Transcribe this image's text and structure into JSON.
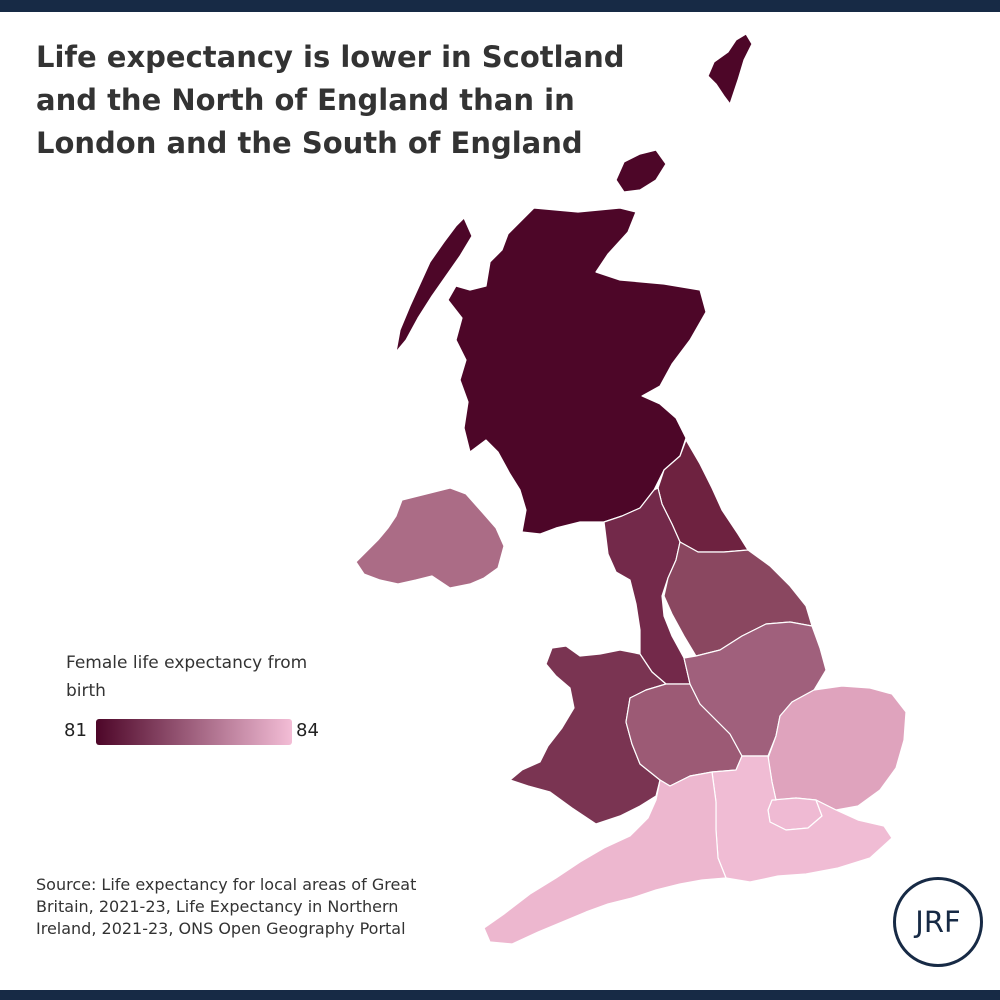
{
  "title": "Life expectancy is lower in Scotland and the North of England than in London and the South of England",
  "legend": {
    "title": "Female life expectancy from birth",
    "min_label": "81",
    "max_label": "84",
    "min_value": 81,
    "max_value": 84,
    "color_low": "#4d0628",
    "color_high": "#f3bdd6"
  },
  "source": "Source: Life expectancy for local areas of Great Britain, 2021-23, Life Expectancy in Northern Ireland, 2021-23, ONS Open Geography Portal",
  "logo_text": "JRF",
  "frame_color": "#172a45",
  "regions": [
    {
      "name": "Scotland",
      "color": "#4d0628"
    },
    {
      "name": "North East",
      "color": "#6e2240"
    },
    {
      "name": "North West",
      "color": "#73294a"
    },
    {
      "name": "Yorkshire and The Humber",
      "color": "#8a4760"
    },
    {
      "name": "Northern Ireland",
      "color": "#ab6c86"
    },
    {
      "name": "Wales",
      "color": "#7a3452"
    },
    {
      "name": "West Midlands",
      "color": "#9c5a75"
    },
    {
      "name": "East Midlands",
      "color": "#a0607c"
    },
    {
      "name": "East of England",
      "color": "#dfa3bd"
    },
    {
      "name": "South West",
      "color": "#edb7cf"
    },
    {
      "name": "South East",
      "color": "#f0bcd4"
    },
    {
      "name": "London",
      "color": "#efbad3"
    }
  ]
}
